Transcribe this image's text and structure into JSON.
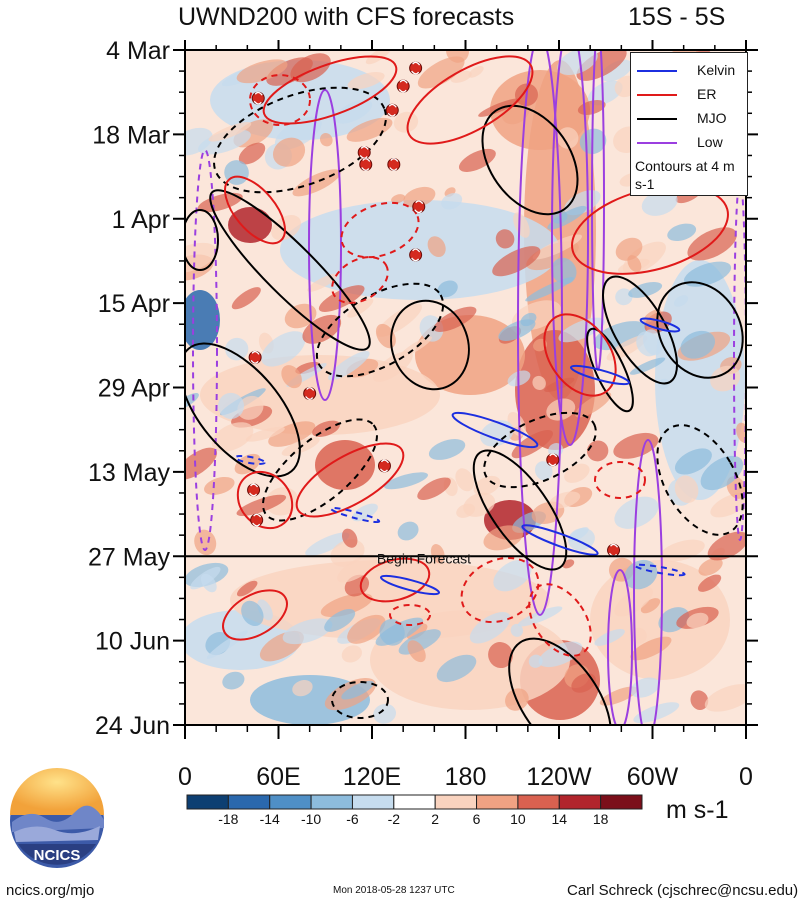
{
  "header": {
    "title": "UWND200 with CFS forecasts",
    "region": "15S - 5S"
  },
  "chart_data": {
    "type": "heatmap",
    "title": "UWND200 with CFS forecasts",
    "subtitle": "15S - 5S",
    "y_ticks": [
      "4 Mar",
      "18 Mar",
      "1 Apr",
      "15 Apr",
      "29 Apr",
      "13 May",
      "27 May",
      "10 Jun",
      "24 Jun"
    ],
    "x_ticks": [
      "0",
      "60E",
      "120E",
      "180",
      "120W",
      "60W",
      "0"
    ],
    "x_range_deg": [
      0,
      360
    ],
    "colorbar": {
      "levels": [
        "-18",
        "-14",
        "-10",
        "-6",
        "-2",
        "2",
        "6",
        "10",
        "14",
        "18"
      ],
      "colors": [
        "#0d3f72",
        "#2a68ad",
        "#4f8fc6",
        "#8dbcdd",
        "#c6dcee",
        "#ffffff",
        "#f9d3bf",
        "#f0a283",
        "#d96150",
        "#b1242c",
        "#7b0f1a"
      ],
      "units": "m s-1"
    },
    "forecast_line": {
      "date": "27 May",
      "label": "Begin Forecast"
    },
    "legend": {
      "position": "top-right",
      "entries": [
        {
          "name": "Kelvin",
          "color": "#1c2fe0"
        },
        {
          "name": "ER",
          "color": "#e01a1a"
        },
        {
          "name": "MJO",
          "color": "#000000"
        },
        {
          "name": "Low",
          "color": "#9b3fe0"
        }
      ],
      "note": "Contours at 4 m s-1"
    },
    "storm_symbols": [
      {
        "lon_deg": 148,
        "date": "7 Mar"
      },
      {
        "lon_deg": 140,
        "date": "10 Mar"
      },
      {
        "lon_deg": 47,
        "date": "12 Mar"
      },
      {
        "lon_deg": 133,
        "date": "14 Mar"
      },
      {
        "lon_deg": 115,
        "date": "21 Mar"
      },
      {
        "lon_deg": 116,
        "date": "23 Mar"
      },
      {
        "lon_deg": 134,
        "date": "23 Mar"
      },
      {
        "lon_deg": 150,
        "date": "30 Mar"
      },
      {
        "lon_deg": 148,
        "date": "7 Apr"
      },
      {
        "lon_deg": 45,
        "date": "24 Apr"
      },
      {
        "lon_deg": 80,
        "date": "30 Apr"
      },
      {
        "lon_deg": 128,
        "date": "12 May"
      },
      {
        "lon_deg": 236,
        "date": "11 May"
      },
      {
        "lon_deg": 44,
        "date": "16 May"
      },
      {
        "lon_deg": 46,
        "date": "21 May"
      },
      {
        "lon_deg": 275,
        "date": "26 May"
      }
    ]
  },
  "footer": {
    "logo_text": "NCICS",
    "site": "ncics.org/mjo",
    "timestamp": "Mon 2018-05-28 1237 UTC",
    "author": "Carl Schreck (cjschrec@ncsu.edu)"
  }
}
